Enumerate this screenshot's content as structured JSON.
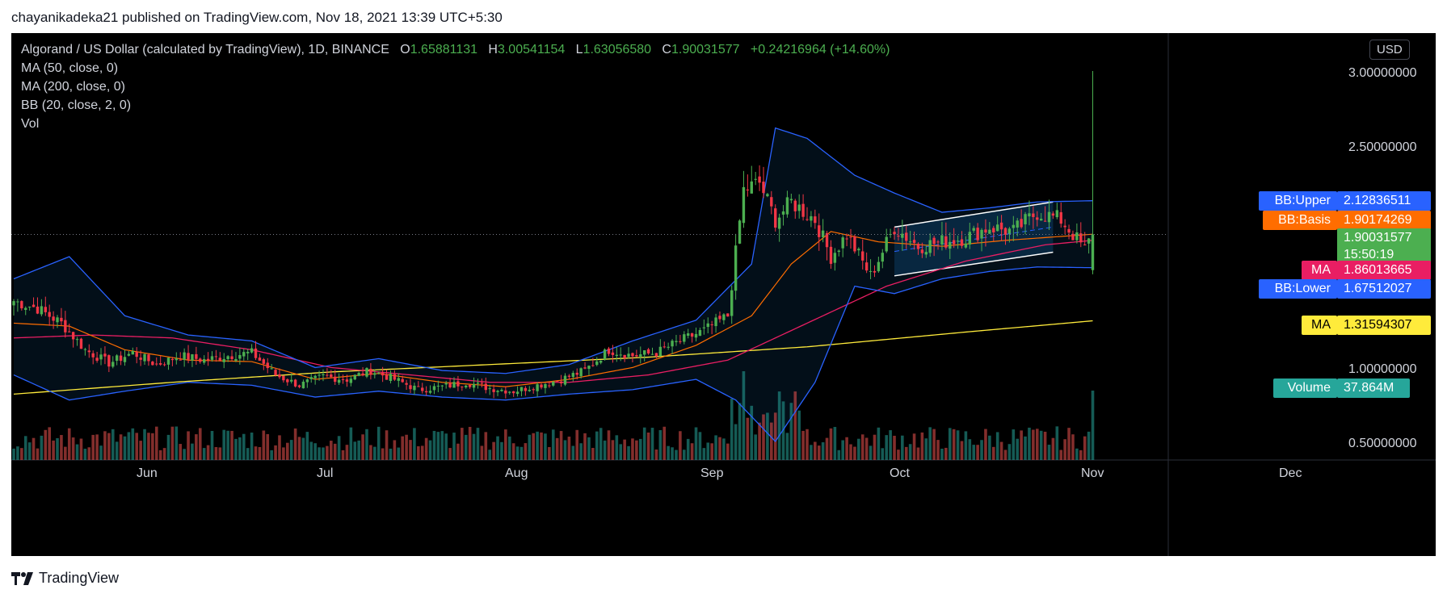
{
  "publisher": "chayanikadeka21 published on TradingView.com, Nov 18, 2021 13:39 UTC+5:30",
  "brand": "TradingView",
  "currency": "USD",
  "legend": {
    "symbol": "Algorand / US Dollar (calculated by TradingView), 1D, BINANCE",
    "o_label": "O",
    "o": "1.65881131",
    "h_label": "H",
    "h": "3.00541154",
    "l_label": "L",
    "l": "1.63056580",
    "c_label": "C",
    "c": "1.90031577",
    "change": "+0.24216964 (+14.60%)",
    "indicators": [
      "MA (50, close, 0)",
      "MA (200, close, 0)",
      "BB (20, close, 2, 0)",
      "Vol"
    ]
  },
  "tags": {
    "bb_upper": {
      "label": "BB:Upper",
      "value": "2.12836511",
      "color": "#2962ff"
    },
    "bb_basis": {
      "label": "BB:Basis",
      "value": "1.90174269",
      "color": "#ff6d00"
    },
    "price": {
      "value": "1.90031577",
      "countdown": "15:50:19",
      "color": "#4caf50"
    },
    "ma50": {
      "label": "MA",
      "value": "1.86013665",
      "color": "#e91e63"
    },
    "bb_lower": {
      "label": "BB:Lower",
      "value": "1.67512027",
      "color": "#2962ff"
    },
    "ma200": {
      "label": "MA",
      "value": "1.31594307",
      "color": "#ffeb3b"
    },
    "volume": {
      "label": "Volume",
      "value": "37.864M",
      "color": "#26a69a"
    }
  },
  "chart_data": {
    "type": "candlestick",
    "title": "Algorand / US Dollar (calculated by TradingView), 1D, BINANCE",
    "y_ticks": [
      "3.00000000",
      "2.50000000",
      "1.00000000",
      "0.50000000"
    ],
    "x_ticks": [
      "Jun",
      "Jul",
      "Aug",
      "Sep",
      "Oct",
      "Nov",
      "Dec"
    ],
    "ylim": [
      0.4,
      3.1
    ],
    "last_candle": {
      "open": 1.65881131,
      "high": 3.00541154,
      "low": 1.6305658,
      "close": 1.90031577
    },
    "last_volume": "37.864M",
    "series_anchors": {
      "close": [
        [
          0,
          1.45
        ],
        [
          6,
          1.4
        ],
        [
          12,
          1.3
        ],
        [
          18,
          1.12
        ],
        [
          24,
          1.03
        ],
        [
          30,
          1.1
        ],
        [
          36,
          1.02
        ],
        [
          42,
          1.08
        ],
        [
          48,
          1.05
        ],
        [
          54,
          1.08
        ],
        [
          60,
          1.1
        ],
        [
          66,
          0.95
        ],
        [
          72,
          0.88
        ],
        [
          78,
          0.94
        ],
        [
          84,
          0.92
        ],
        [
          90,
          0.98
        ],
        [
          96,
          0.92
        ],
        [
          102,
          0.85
        ],
        [
          108,
          0.87
        ],
        [
          114,
          0.9
        ],
        [
          120,
          0.86
        ],
        [
          126,
          0.84
        ],
        [
          132,
          0.88
        ],
        [
          138,
          0.92
        ],
        [
          144,
          0.98
        ],
        [
          150,
          1.12
        ],
        [
          156,
          1.08
        ],
        [
          162,
          1.1
        ],
        [
          168,
          1.18
        ],
        [
          174,
          1.25
        ],
        [
          180,
          1.35
        ],
        [
          184,
          2.2
        ],
        [
          188,
          2.25
        ],
        [
          192,
          2.0
        ],
        [
          196,
          2.12
        ],
        [
          202,
          2.0
        ],
        [
          206,
          1.75
        ],
        [
          210,
          1.9
        ],
        [
          216,
          1.62
        ],
        [
          222,
          1.95
        ],
        [
          228,
          1.82
        ],
        [
          234,
          1.85
        ],
        [
          240,
          1.88
        ],
        [
          246,
          1.95
        ],
        [
          252,
          1.92
        ],
        [
          258,
          2.05
        ],
        [
          264,
          2.0
        ],
        [
          270,
          1.8
        ],
        [
          272,
          1.90031577
        ]
      ],
      "ma50": [
        [
          0,
          1.2
        ],
        [
          20,
          1.22
        ],
        [
          40,
          1.2
        ],
        [
          60,
          1.12
        ],
        [
          80,
          1.0
        ],
        [
          100,
          0.95
        ],
        [
          120,
          0.9
        ],
        [
          140,
          0.9
        ],
        [
          160,
          0.95
        ],
        [
          180,
          1.05
        ],
        [
          200,
          1.3
        ],
        [
          220,
          1.55
        ],
        [
          240,
          1.72
        ],
        [
          260,
          1.83
        ],
        [
          272,
          1.86013665
        ]
      ],
      "ma200": [
        [
          0,
          0.82
        ],
        [
          40,
          0.9
        ],
        [
          80,
          0.97
        ],
        [
          120,
          1.02
        ],
        [
          160,
          1.07
        ],
        [
          200,
          1.14
        ],
        [
          240,
          1.24
        ],
        [
          272,
          1.31594307
        ]
      ],
      "bb_upper": [
        [
          0,
          1.6
        ],
        [
          14,
          1.75
        ],
        [
          28,
          1.35
        ],
        [
          44,
          1.22
        ],
        [
          60,
          1.18
        ],
        [
          76,
          1.0
        ],
        [
          92,
          1.06
        ],
        [
          108,
          0.98
        ],
        [
          124,
          0.96
        ],
        [
          140,
          1.02
        ],
        [
          156,
          1.18
        ],
        [
          172,
          1.32
        ],
        [
          186,
          1.7
        ],
        [
          192,
          2.62
        ],
        [
          200,
          2.55
        ],
        [
          212,
          2.3
        ],
        [
          222,
          2.18
        ],
        [
          234,
          2.05
        ],
        [
          246,
          2.08
        ],
        [
          258,
          2.12
        ],
        [
          272,
          2.12836511
        ]
      ],
      "bb_basis": [
        [
          0,
          1.3
        ],
        [
          14,
          1.28
        ],
        [
          28,
          1.12
        ],
        [
          44,
          1.05
        ],
        [
          60,
          1.04
        ],
        [
          76,
          0.92
        ],
        [
          92,
          0.96
        ],
        [
          108,
          0.9
        ],
        [
          124,
          0.87
        ],
        [
          140,
          0.92
        ],
        [
          156,
          1.0
        ],
        [
          172,
          1.15
        ],
        [
          186,
          1.35
        ],
        [
          196,
          1.7
        ],
        [
          206,
          1.92
        ],
        [
          218,
          1.85
        ],
        [
          234,
          1.82
        ],
        [
          250,
          1.86
        ],
        [
          272,
          1.90174269
        ]
      ],
      "bb_lower": [
        [
          0,
          0.95
        ],
        [
          14,
          0.78
        ],
        [
          28,
          0.84
        ],
        [
          44,
          0.9
        ],
        [
          60,
          0.88
        ],
        [
          76,
          0.8
        ],
        [
          92,
          0.84
        ],
        [
          108,
          0.8
        ],
        [
          124,
          0.78
        ],
        [
          140,
          0.82
        ],
        [
          156,
          0.85
        ],
        [
          172,
          0.92
        ],
        [
          182,
          0.78
        ],
        [
          192,
          0.5
        ],
        [
          202,
          0.9
        ],
        [
          212,
          1.55
        ],
        [
          222,
          1.5
        ],
        [
          234,
          1.6
        ],
        [
          246,
          1.65
        ],
        [
          258,
          1.68
        ],
        [
          272,
          1.67512027
        ]
      ]
    },
    "drawn_channel": {
      "upper": [
        [
          222,
          1.95
        ],
        [
          262,
          2.12
        ]
      ],
      "lower": [
        [
          222,
          1.62
        ],
        [
          262,
          1.78
        ]
      ]
    }
  }
}
